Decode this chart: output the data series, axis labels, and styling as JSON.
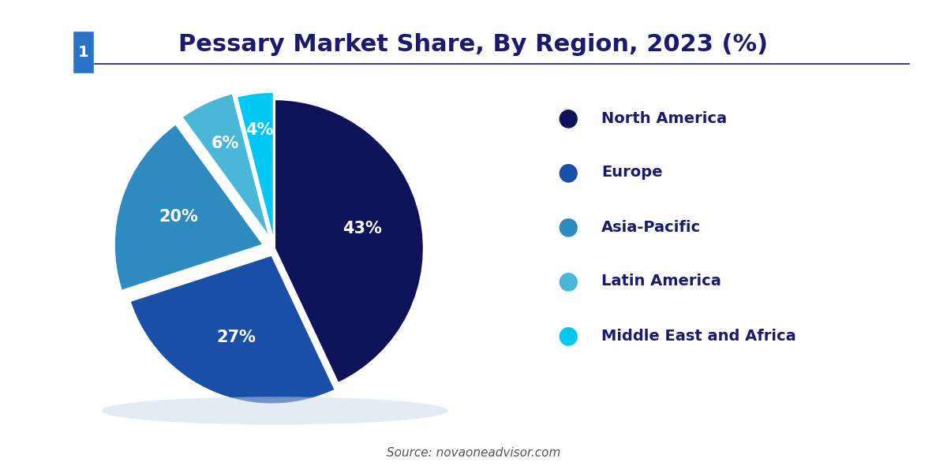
{
  "title": "Pessary Market Share, By Region, 2023 (%)",
  "labels": [
    "North America",
    "Europe",
    "Asia-Pacific",
    "Latin America",
    "Middle East and Africa"
  ],
  "values": [
    43,
    27,
    20,
    6,
    4
  ],
  "colors": [
    "#0d1259",
    "#1a4fa8",
    "#2e8bbf",
    "#4ab6d8",
    "#00c8f5"
  ],
  "pct_labels": [
    "43%",
    "27%",
    "20%",
    "6%",
    "4%"
  ],
  "explode": [
    0,
    0.05,
    0.08,
    0.08,
    0.05
  ],
  "source_text": "Source: novaoneadvisor.com",
  "bg_color": "#ffffff",
  "text_color": "#1a1a6e",
  "title_fontsize": 22,
  "legend_fontsize": 14,
  "pct_fontsize": 15,
  "logo_bg": "#1a3a8f",
  "logo_mid": "#2a72c8"
}
